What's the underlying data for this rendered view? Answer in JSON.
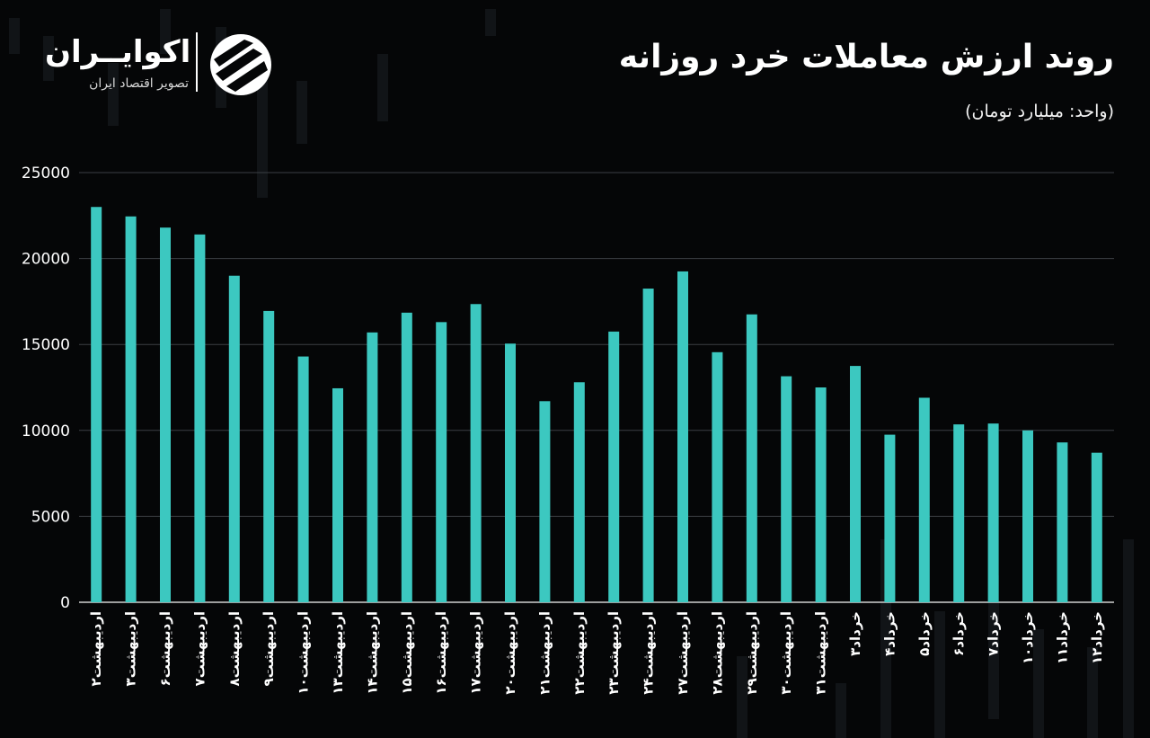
{
  "header": {
    "title": "روند ارزش معاملات خرد روزانه",
    "unit": "(واحد: میلیارد تومان)"
  },
  "logo": {
    "name": "اکوایــران",
    "tagline": "تصویر اقتصاد ایران"
  },
  "colors": {
    "bar": "#3cc8c0",
    "grid": "#3c3f44",
    "background": "#050607",
    "text": "#ffffff"
  },
  "chart_data": {
    "type": "bar",
    "title": "روند ارزش معاملات خرد روزانه",
    "ylabel": "",
    "xlabel": "",
    "ylim": [
      0,
      25000
    ],
    "yticks": [
      "25000",
      "20000",
      "15000",
      "10000",
      "5000",
      "0"
    ],
    "ytick_values": [
      25000,
      20000,
      15000,
      10000,
      5000,
      0
    ],
    "grid": true,
    "categories": [
      "اردیبهشت۲",
      "اردیبهشت۳",
      "اردیبهشت۶",
      "اردیبهشت۷",
      "اردیبهشت۸",
      "اردیبهشت۹",
      "اردیبهشت۱۰",
      "اردیبهشت۱۳",
      "اردیبهشت۱۴",
      "اردیبهشت۱۵",
      "اردیبهشت۱۶",
      "اردیبهشت۱۷",
      "اردیبهشت۲۰",
      "اردیبهشت۲۱",
      "اردیبهشت۲۲",
      "اردیبهشت۲۳",
      "اردیبهشت۲۴",
      "اردیبهشت۲۷",
      "اردیبهشت۲۸",
      "اردیبهشت۲۹",
      "اردیبهشت۳۰",
      "اردیبهشت۳۱",
      "خرداد۳",
      "خرداد۴",
      "خرداد۵",
      "خرداد۶",
      "خرداد۷",
      "خرداد۱۰",
      "خرداد۱۱",
      "خرداد۱۲"
    ],
    "values": [
      23000,
      22450,
      21800,
      21400,
      19000,
      16950,
      14300,
      12450,
      15700,
      16850,
      16300,
      17350,
      15050,
      11700,
      12800,
      15750,
      18250,
      19250,
      14550,
      16750,
      13150,
      12500,
      13750,
      9750,
      11900,
      10350,
      10400,
      10000,
      9300,
      8700
    ]
  }
}
